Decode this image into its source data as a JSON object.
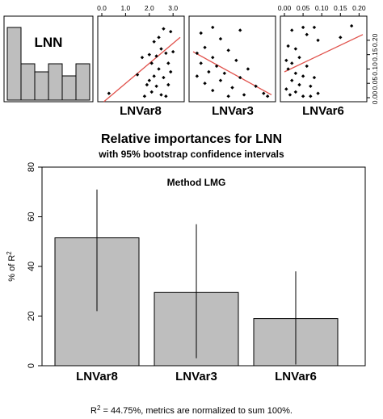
{
  "chart_data": [
    {
      "type": "histogram",
      "panel_label": "LNN",
      "values": [
        0.9,
        0.45,
        0.35,
        0.45,
        0.3,
        0.45
      ]
    },
    {
      "type": "scatter",
      "xlabel": "LNVar8",
      "xlim": [
        0,
        3.3
      ],
      "ylim": [
        0,
        0.27
      ],
      "top_ticks": [
        "0.0",
        "1.0",
        "2.0",
        "3.0"
      ],
      "top_tick_values": [
        0,
        1,
        2,
        3
      ],
      "points": [
        [
          2.6,
          0.24
        ],
        [
          2.4,
          0.21
        ],
        [
          2.9,
          0.23
        ],
        [
          2.2,
          0.195
        ],
        [
          2.5,
          0.17
        ],
        [
          2.0,
          0.15
        ],
        [
          2.3,
          0.145
        ],
        [
          2.7,
          0.155
        ],
        [
          1.7,
          0.14
        ],
        [
          2.1,
          0.12
        ],
        [
          2.8,
          0.12
        ],
        [
          2.4,
          0.1
        ],
        [
          1.5,
          0.08
        ],
        [
          2.2,
          0.075
        ],
        [
          2.6,
          0.07
        ],
        [
          2.0,
          0.06
        ],
        [
          1.9,
          0.045
        ],
        [
          2.3,
          0.04
        ],
        [
          2.8,
          0.045
        ],
        [
          0.3,
          0.015
        ],
        [
          2.1,
          0.02
        ],
        [
          2.5,
          0.01
        ],
        [
          1.8,
          0.005
        ],
        [
          2.7,
          0.005
        ],
        [
          3.0,
          0.16
        ],
        [
          2.9,
          0.09
        ]
      ],
      "fit": [
        [
          0,
          -0.02
        ],
        [
          3.3,
          0.21
        ]
      ]
    },
    {
      "type": "scatter",
      "xlabel": "LNVar3",
      "xlim": [
        0,
        1
      ],
      "ylim": [
        0,
        0.27
      ],
      "points": [
        [
          0.25,
          0.245
        ],
        [
          0.6,
          0.235
        ],
        [
          0.1,
          0.225
        ],
        [
          0.35,
          0.205
        ],
        [
          0.15,
          0.175
        ],
        [
          0.45,
          0.165
        ],
        [
          0.05,
          0.155
        ],
        [
          0.25,
          0.14
        ],
        [
          0.55,
          0.13
        ],
        [
          0.1,
          0.12
        ],
        [
          0.3,
          0.11
        ],
        [
          0.7,
          0.1
        ],
        [
          0.2,
          0.09
        ],
        [
          0.4,
          0.085
        ],
        [
          0.05,
          0.075
        ],
        [
          0.6,
          0.07
        ],
        [
          0.35,
          0.06
        ],
        [
          0.15,
          0.05
        ],
        [
          0.8,
          0.04
        ],
        [
          0.5,
          0.035
        ],
        [
          0.25,
          0.025
        ],
        [
          0.9,
          0.015
        ],
        [
          0.65,
          0.01
        ],
        [
          0.45,
          0.005
        ],
        [
          0.95,
          0.005
        ]
      ],
      "fit": [
        [
          0,
          0.16
        ],
        [
          1,
          0.01
        ]
      ]
    },
    {
      "type": "scatter",
      "xlabel": "LNVar6",
      "xlim": [
        0,
        0.21
      ],
      "ylim": [
        0,
        0.27
      ],
      "top_ticks": [
        "0.00",
        "0.05",
        "0.10",
        "0.15",
        "0.20"
      ],
      "top_tick_values": [
        0,
        0.05,
        0.1,
        0.15,
        0.2
      ],
      "right_ticks": [
        "0.00",
        "0.05",
        "0.10",
        "0.15",
        "0.20"
      ],
      "right_tick_values": [
        0,
        0.05,
        0.1,
        0.15,
        0.2
      ],
      "points": [
        [
          0.05,
          0.245
        ],
        [
          0.08,
          0.245
        ],
        [
          0.02,
          0.235
        ],
        [
          0.06,
          0.22
        ],
        [
          0.09,
          0.2
        ],
        [
          0.15,
          0.21
        ],
        [
          0.18,
          0.25
        ],
        [
          0.01,
          0.18
        ],
        [
          0.03,
          0.17
        ],
        [
          0.04,
          0.14
        ],
        [
          0.005,
          0.13
        ],
        [
          0.02,
          0.12
        ],
        [
          0.06,
          0.11
        ],
        [
          0.01,
          0.1
        ],
        [
          0.03,
          0.085
        ],
        [
          0.05,
          0.075
        ],
        [
          0.08,
          0.07
        ],
        [
          0.02,
          0.06
        ],
        [
          0.04,
          0.045
        ],
        [
          0.07,
          0.04
        ],
        [
          0.005,
          0.03
        ],
        [
          0.03,
          0.02
        ],
        [
          0.09,
          0.015
        ],
        [
          0.015,
          0.01
        ],
        [
          0.05,
          0.005
        ],
        [
          0.07,
          0.005
        ]
      ],
      "fit": [
        [
          0,
          0.09
        ],
        [
          0.21,
          0.22
        ]
      ]
    },
    {
      "type": "bar",
      "title": "Relative importances for LNN",
      "subtitle": "with 95% bootstrap confidence intervals",
      "annotation": "Method LMG",
      "ylabel_pre": "% of R",
      "ylabel_sup": "2",
      "ylim": [
        0,
        80
      ],
      "yticks": [
        "0",
        "20",
        "40",
        "60",
        "80"
      ],
      "ytick_values": [
        0,
        20,
        40,
        60,
        80
      ],
      "categories": [
        "LNVar8",
        "LNVar3",
        "LNVar6"
      ],
      "values": [
        51.5,
        29.5,
        19
      ],
      "ci_low": [
        22,
        3,
        0.5
      ],
      "ci_high": [
        71,
        57,
        38
      ],
      "bar_color": "#bebebe",
      "footer_pre": "R",
      "footer_sup": "2",
      "footer_post": " = 44.75%, metrics are normalized to sum 100%."
    }
  ]
}
